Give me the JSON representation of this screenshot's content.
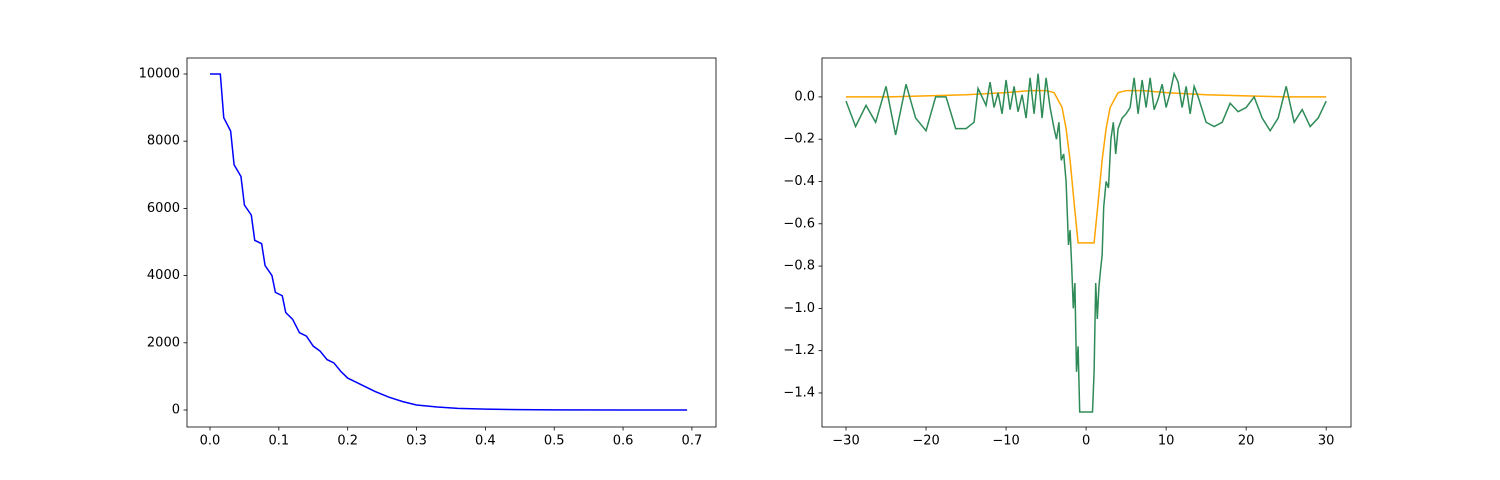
{
  "chart_data": [
    {
      "type": "line",
      "xlim": [
        -0.0334,
        0.735
      ],
      "ylim": [
        -506,
        10476
      ],
      "xticks": [
        {
          "value": 0,
          "label": "0.0"
        },
        {
          "value": 0.1,
          "label": "0.1"
        },
        {
          "value": 0.2,
          "label": "0.2"
        },
        {
          "value": 0.3,
          "label": "0.3"
        },
        {
          "value": 0.4,
          "label": "0.4"
        },
        {
          "value": 0.5,
          "label": "0.5"
        },
        {
          "value": 0.6,
          "label": "0.6"
        },
        {
          "value": 0.7,
          "label": "0.7"
        }
      ],
      "yticks": [
        0,
        2000,
        4000,
        6000,
        8000,
        10000
      ],
      "series": [
        {
          "color": "#0000ff",
          "x": [
            0,
            0.015,
            0.02,
            0.03,
            0.035,
            0.045,
            0.05,
            0.06,
            0.065,
            0.075,
            0.08,
            0.09,
            0.095,
            0.105,
            0.11,
            0.12,
            0.13,
            0.14,
            0.15,
            0.16,
            0.17,
            0.18,
            0.19,
            0.2,
            0.22,
            0.24,
            0.26,
            0.28,
            0.3,
            0.33,
            0.36,
            0.4,
            0.45,
            0.5,
            0.6,
            0.693
          ],
          "values": [
            10000,
            10000,
            8700,
            8300,
            7300,
            6950,
            6100,
            5800,
            5050,
            4950,
            4300,
            4000,
            3500,
            3400,
            2900,
            2700,
            2300,
            2200,
            1900,
            1750,
            1500,
            1400,
            1150,
            950,
            750,
            550,
            380,
            250,
            150,
            90,
            50,
            25,
            10,
            5,
            1,
            0
          ]
        }
      ]
    },
    {
      "type": "line",
      "xlim": [
        -33,
        33.1
      ],
      "ylim": [
        -1.561,
        0.184
      ],
      "xticks": [
        {
          "value": -30,
          "label": "−30"
        },
        {
          "value": -20,
          "label": "−20"
        },
        {
          "value": -10,
          "label": "−10"
        },
        0,
        10,
        20,
        30
      ],
      "yticks": [
        {
          "value": -1.4,
          "label": "−1.4"
        },
        {
          "value": -1.2,
          "label": "−1.2"
        },
        {
          "value": -1.0,
          "label": "−1.0"
        },
        {
          "value": -0.8,
          "label": "−0.8"
        },
        {
          "value": -0.6,
          "label": "−0.6"
        },
        {
          "value": -0.4,
          "label": "−0.4"
        },
        {
          "value": -0.2,
          "label": "−0.2"
        },
        {
          "value": 0,
          "label": "0.0"
        }
      ],
      "series": [
        {
          "color": "#ffa500",
          "x": [
            -30,
            -25,
            -20,
            -15,
            -10,
            -7,
            -5,
            -4,
            -3,
            -2.5,
            -2,
            -1.5,
            -1,
            1,
            1.5,
            2,
            2.5,
            3,
            4,
            5,
            7,
            10,
            15,
            20,
            25,
            30
          ],
          "values": [
            0,
            0,
            0.005,
            0.01,
            0.02,
            0.03,
            0.03,
            0.02,
            -0.05,
            -0.15,
            -0.3,
            -0.5,
            -0.69,
            -0.69,
            -0.5,
            -0.3,
            -0.15,
            -0.05,
            0.02,
            0.03,
            0.03,
            0.02,
            0.01,
            0.005,
            0,
            0
          ]
        },
        {
          "color": "#2e8b57",
          "x": [
            -30,
            -28.8,
            -27.5,
            -26.3,
            -25,
            -23.8,
            -22.5,
            -21.3,
            -20,
            -18.8,
            -17.5,
            -16.3,
            -15,
            -14,
            -13.5,
            -12.5,
            -12,
            -11.5,
            -11,
            -10.5,
            -10,
            -9.5,
            -9,
            -8.5,
            -8,
            -7.5,
            -7,
            -6.5,
            -6,
            -5.5,
            -5,
            -4.5,
            -4,
            -3.7,
            -3.4,
            -3.1,
            -2.8,
            -2.5,
            -2.2,
            -2,
            -1.8,
            -1.6,
            -1.4,
            -1.2,
            -1,
            -0.8,
            0.8,
            1,
            1.2,
            1.4,
            1.6,
            1.8,
            2,
            2.2,
            2.5,
            2.8,
            3.1,
            3.4,
            3.7,
            4,
            4.5,
            5,
            5.5,
            6,
            6.5,
            7,
            7.5,
            8,
            8.5,
            9,
            9.5,
            10,
            10.5,
            11,
            11.5,
            12,
            12.5,
            13,
            13.5,
            14,
            15,
            16,
            17,
            18,
            19,
            20,
            21,
            22,
            23,
            24,
            25,
            26,
            27,
            28,
            29,
            30
          ],
          "values": [
            -0.02,
            -0.14,
            -0.04,
            -0.12,
            0.05,
            -0.18,
            0.06,
            -0.1,
            -0.16,
            0,
            0,
            -0.15,
            -0.15,
            -0.12,
            0.04,
            -0.04,
            0.07,
            -0.05,
            0.02,
            -0.08,
            0.08,
            -0.06,
            0.05,
            -0.07,
            0.01,
            -0.1,
            0.09,
            -0.08,
            0.11,
            -0.1,
            0.09,
            -0.05,
            -0.15,
            -0.2,
            -0.12,
            -0.3,
            -0.27,
            -0.4,
            -0.7,
            -0.63,
            -0.8,
            -1.0,
            -0.88,
            -1.3,
            -1.18,
            -1.49,
            -1.49,
            -1.3,
            -0.88,
            -1.05,
            -0.9,
            -0.82,
            -0.75,
            -0.52,
            -0.4,
            -0.43,
            -0.2,
            -0.12,
            -0.27,
            -0.15,
            -0.1,
            -0.08,
            -0.05,
            0.09,
            -0.08,
            0.08,
            -0.05,
            0.09,
            -0.06,
            -0.01,
            0.06,
            -0.05,
            0.02,
            0.11,
            0.07,
            -0.05,
            0.05,
            -0.08,
            0.05,
            0,
            -0.12,
            -0.14,
            -0.12,
            -0.03,
            -0.07,
            -0.05,
            0,
            -0.1,
            -0.16,
            -0.1,
            0.05,
            -0.12,
            -0.06,
            -0.14,
            -0.1,
            -0.02
          ]
        }
      ]
    }
  ]
}
